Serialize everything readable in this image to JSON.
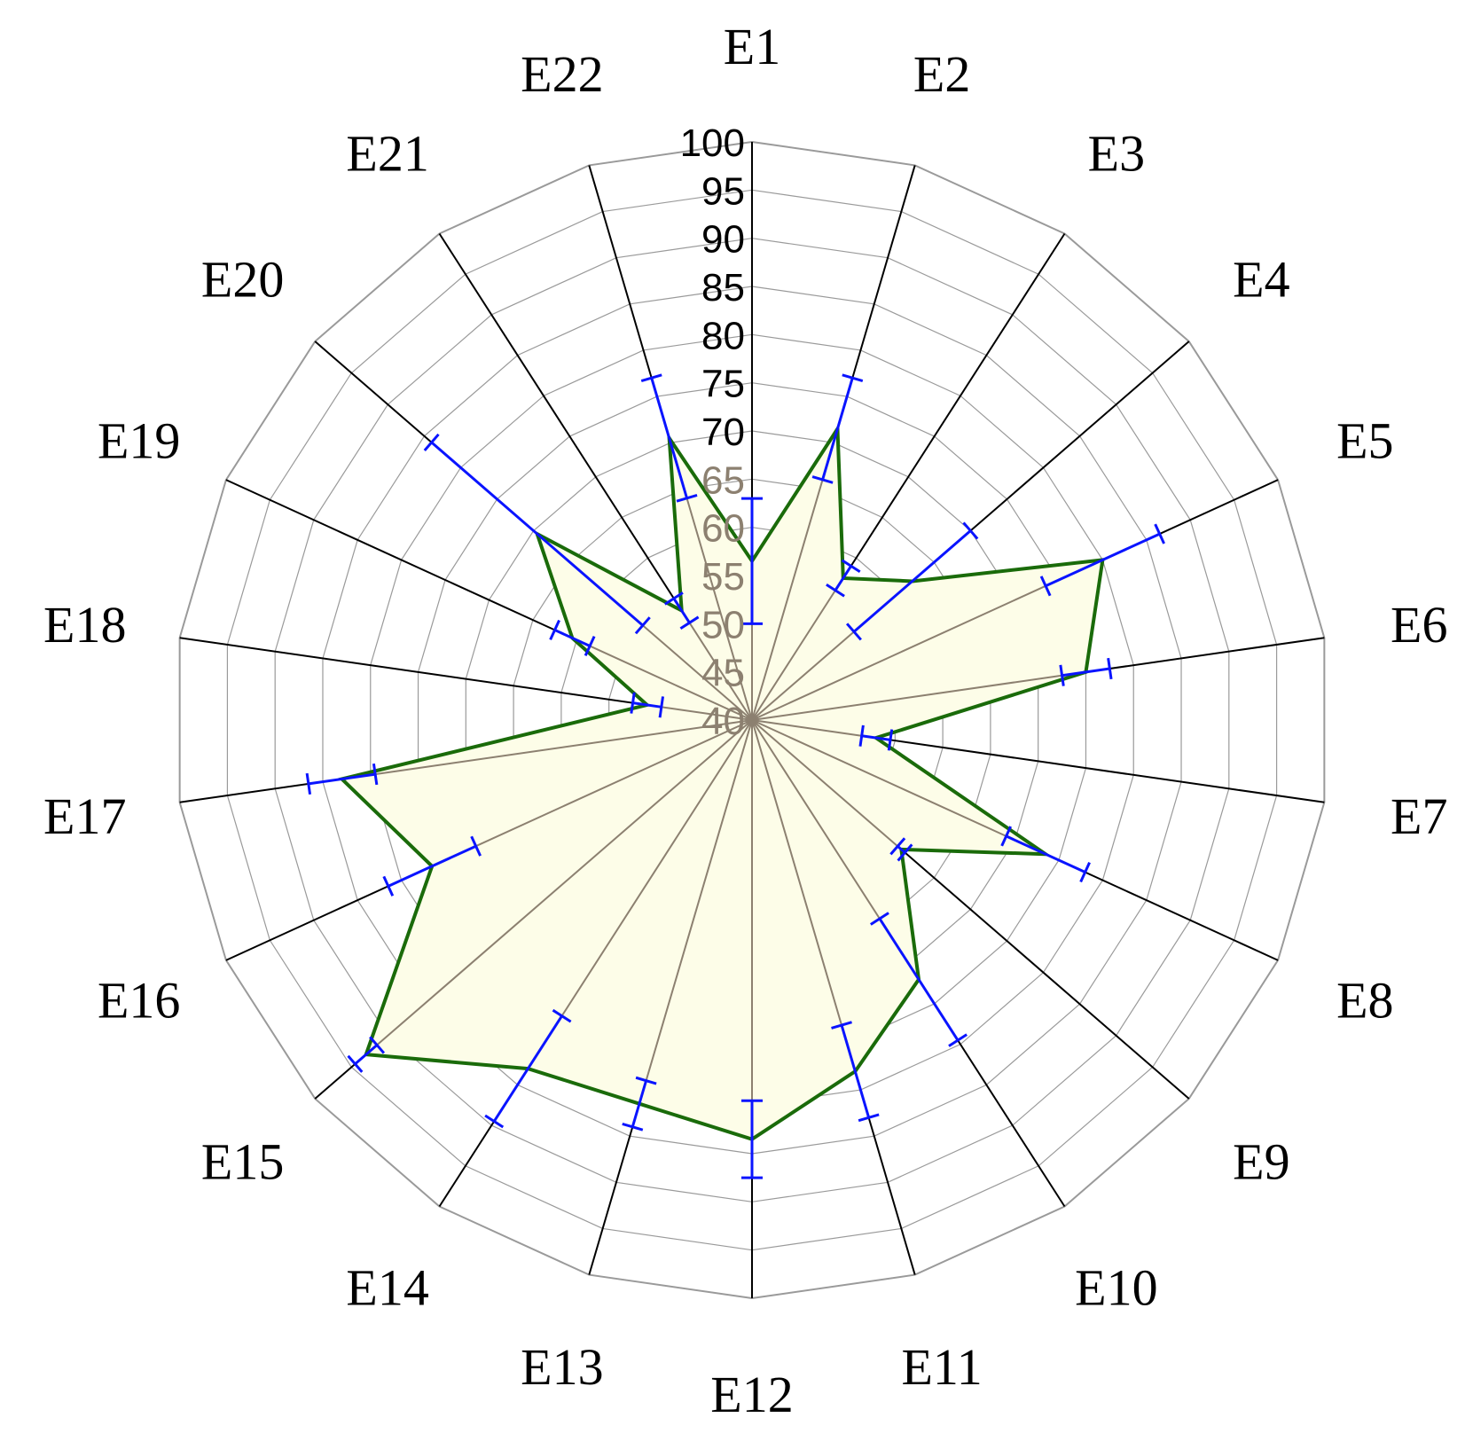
{
  "chart_data": {
    "type": "radar",
    "categories": [
      "E1",
      "E2",
      "E3",
      "E4",
      "E5",
      "E6",
      "E7",
      "E8",
      "E9",
      "E10",
      "E11",
      "E12",
      "E13",
      "E14",
      "E15",
      "E16",
      "E17",
      "E18",
      "E19",
      "E20",
      "E21",
      "E22"
    ],
    "series": [
      {
        "values": [
          56.5,
          71.5,
          57.5,
          62,
          80,
          75,
          53,
          73.5,
          60.5,
          72,
          78,
          83.5,
          81.5,
          83,
          93,
          76.5,
          83,
          51,
          60.5,
          69.5,
          53.5,
          70.5
        ],
        "error": [
          6.5,
          5.5,
          1.5,
          8,
          6.5,
          2.5,
          1.5,
          4.5,
          0.5,
          7.5,
          5,
          4,
          2.5,
          6.5,
          1.5,
          5,
          3.5,
          1.5,
          2.0,
          14.5,
          1.5,
          6.5
        ]
      }
    ],
    "rlim": [
      40,
      100
    ],
    "ticks": [
      "40",
      "45",
      "50",
      "55",
      "60",
      "65",
      "70",
      "75",
      "80",
      "85",
      "90",
      "95",
      "100"
    ],
    "colors": {
      "line": "#1a6b0a",
      "fill": "#fdfde8",
      "error_bar": "#0a14ff",
      "spoke_inner": "#8c8070",
      "spoke_outer": "#000000",
      "grid": "#9a9a9a",
      "tick_inner": "#8c8070",
      "tick_outer": "#000000"
    }
  }
}
